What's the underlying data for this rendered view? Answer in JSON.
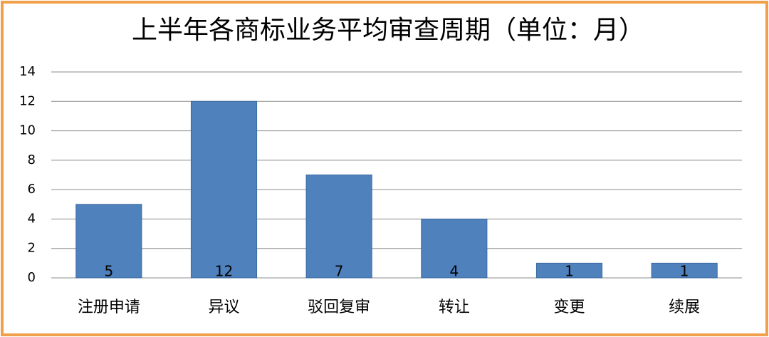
{
  "chart_data": {
    "type": "bar",
    "title": "上半年各商标业务平均审查周期（单位：月）",
    "categories": [
      "注册申请",
      "异议",
      "驳回复审",
      "转让",
      "变更",
      "续展"
    ],
    "values": [
      5,
      12,
      7,
      4,
      1,
      1
    ],
    "color": "#4f81bd",
    "ylim": [
      0,
      14
    ],
    "yticks": [
      0,
      2,
      4,
      6,
      8,
      10,
      12,
      14
    ],
    "grid": true,
    "data_labels": true
  }
}
